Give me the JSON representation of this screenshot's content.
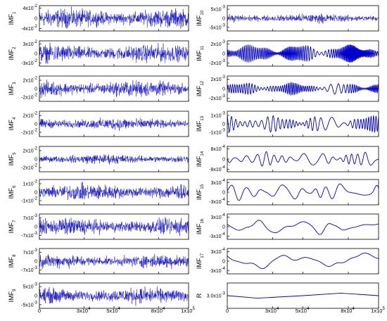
{
  "line_color": "#0000cc",
  "chart_data": {
    "type": "line",
    "grid": false,
    "x_axis": {
      "range": [
        0,
        100000
      ],
      "ticks": [
        0,
        30000,
        50000,
        80000,
        100000
      ],
      "tick_labels": [
        {
          "base": "0",
          "exp": ""
        },
        {
          "base": "3x10",
          "exp": "4"
        },
        {
          "base": "5x10",
          "exp": "4"
        },
        {
          "base": "8x10",
          "exp": "4"
        },
        {
          "base": "1x10",
          "exp": "5"
        }
      ]
    },
    "panels": [
      {
        "label": {
          "base": "IMF",
          "sub": "1"
        },
        "column": "left",
        "ylim": [
          -0.05,
          0.05
        ],
        "yticks": [
          {
            "v": 0.04,
            "base": "4x10",
            "exp": "-2"
          },
          {
            "v": 0,
            "base": "0",
            "exp": ""
          },
          {
            "v": -0.04,
            "base": "-4x10",
            "exp": "-2"
          }
        ],
        "signal": {
          "kind": "noise",
          "amplitude": 0.042,
          "cycles": 0
        }
      },
      {
        "label": {
          "base": "IMF",
          "sub": "2"
        },
        "column": "left",
        "ylim": [
          -0.04,
          0.04
        ],
        "yticks": [
          {
            "v": 0.03,
            "base": "3x10",
            "exp": "-2"
          },
          {
            "v": 0,
            "base": "0",
            "exp": ""
          },
          {
            "v": -0.03,
            "base": "-3x10",
            "exp": "-2"
          }
        ],
        "signal": {
          "kind": "noise",
          "amplitude": 0.032,
          "cycles": 0
        }
      },
      {
        "label": {
          "base": "IMF",
          "sub": "3"
        },
        "column": "left",
        "ylim": [
          -0.03,
          0.03
        ],
        "yticks": [
          {
            "v": 0.02,
            "base": "2x10",
            "exp": "-2"
          },
          {
            "v": 0,
            "base": "0",
            "exp": ""
          },
          {
            "v": -0.02,
            "base": "-2x10",
            "exp": "-2"
          }
        ],
        "signal": {
          "kind": "noise",
          "amplitude": 0.022,
          "cycles": 0
        }
      },
      {
        "label": {
          "base": "IMF",
          "sub": "4"
        },
        "column": "left",
        "ylim": [
          -0.03,
          0.03
        ],
        "yticks": [
          {
            "v": 0.02,
            "base": "2x10",
            "exp": "-2"
          },
          {
            "v": 0,
            "base": "0",
            "exp": ""
          },
          {
            "v": -0.02,
            "base": "-2x10",
            "exp": "-2"
          }
        ],
        "signal": {
          "kind": "noise",
          "amplitude": 0.016,
          "cycles": 0
        }
      },
      {
        "label": {
          "base": "IMF",
          "sub": "5"
        },
        "column": "left",
        "ylim": [
          -0.03,
          0.03
        ],
        "yticks": [
          {
            "v": 0.02,
            "base": "2x10",
            "exp": "-2"
          },
          {
            "v": 0,
            "base": "0",
            "exp": ""
          },
          {
            "v": -0.02,
            "base": "-2x10",
            "exp": "-2"
          }
        ],
        "signal": {
          "kind": "noise",
          "amplitude": 0.013,
          "cycles": 0
        }
      },
      {
        "label": {
          "base": "IMF",
          "sub": "6"
        },
        "column": "left",
        "ylim": [
          -0.015,
          0.015
        ],
        "yticks": [
          {
            "v": 0.01,
            "base": "1x10",
            "exp": "-2"
          },
          {
            "v": 0,
            "base": "0",
            "exp": ""
          },
          {
            "v": -0.01,
            "base": "-1x10",
            "exp": "-2"
          }
        ],
        "signal": {
          "kind": "noise",
          "amplitude": 0.011,
          "cycles": 0
        }
      },
      {
        "label": {
          "base": "IMF",
          "sub": "7"
        },
        "column": "left",
        "ylim": [
          -0.01,
          0.01
        ],
        "yticks": [
          {
            "v": 0.007,
            "base": "7x10",
            "exp": "-3"
          },
          {
            "v": 0,
            "base": "0",
            "exp": ""
          },
          {
            "v": -0.007,
            "base": "-7x10",
            "exp": "-3"
          }
        ],
        "signal": {
          "kind": "noise",
          "amplitude": 0.0075,
          "cycles": 0
        }
      },
      {
        "label": {
          "base": "IMF",
          "sub": "8"
        },
        "column": "left",
        "ylim": [
          -0.01,
          0.01
        ],
        "yticks": [
          {
            "v": 0.007,
            "base": "7x10",
            "exp": "-3"
          },
          {
            "v": 0,
            "base": "0",
            "exp": ""
          },
          {
            "v": -0.007,
            "base": "-7x10",
            "exp": "-3"
          }
        ],
        "signal": {
          "kind": "noise",
          "amplitude": 0.006,
          "cycles": 0
        }
      },
      {
        "label": {
          "base": "IMF",
          "sub": "9"
        },
        "column": "left",
        "ylim": [
          -0.007,
          0.007
        ],
        "yticks": [
          {
            "v": 0.005,
            "base": "5x10",
            "exp": "-3"
          },
          {
            "v": 0,
            "base": "0",
            "exp": ""
          },
          {
            "v": -0.005,
            "base": "-5x10",
            "exp": "-3"
          }
        ],
        "signal": {
          "kind": "noise",
          "amplitude": 0.005,
          "cycles": 0
        }
      },
      {
        "label": {
          "base": "IMF",
          "sub": "10"
        },
        "column": "right",
        "ylim": [
          -0.007,
          0.007
        ],
        "yticks": [
          {
            "v": 0.005,
            "base": "5x10",
            "exp": "-3"
          },
          {
            "v": 0,
            "base": "0",
            "exp": ""
          },
          {
            "v": -0.005,
            "base": "-5x10",
            "exp": "-3"
          }
        ],
        "signal": {
          "kind": "noise",
          "amplitude": 0.0028,
          "cycles": 0
        }
      },
      {
        "label": {
          "base": "IMF",
          "sub": "11"
        },
        "column": "right",
        "ylim": [
          -0.0027,
          0.0027
        ],
        "yticks": [
          {
            "v": 0.002,
            "base": "2x10",
            "exp": "-3"
          },
          {
            "v": 0,
            "base": "0",
            "exp": ""
          },
          {
            "v": -0.002,
            "base": "-2x10",
            "exp": "-3"
          }
        ],
        "signal": {
          "kind": "oscillation",
          "amplitude": 0.0019,
          "cycles": 95
        }
      },
      {
        "label": {
          "base": "IMF",
          "sub": "12"
        },
        "column": "right",
        "ylim": [
          -0.0027,
          0.0027
        ],
        "yticks": [
          {
            "v": 0.002,
            "base": "2x10",
            "exp": "-3"
          },
          {
            "v": 0,
            "base": "0",
            "exp": ""
          },
          {
            "v": -0.002,
            "base": "-2x10",
            "exp": "-3"
          }
        ],
        "signal": {
          "kind": "oscillation",
          "amplitude": 0.0013,
          "cycles": 62
        }
      },
      {
        "label": {
          "base": "IMF",
          "sub": "13"
        },
        "column": "right",
        "ylim": [
          -0.0015,
          0.0015
        ],
        "yticks": [
          {
            "v": 0.001,
            "base": "1x10",
            "exp": "-3"
          },
          {
            "v": 0,
            "base": "0",
            "exp": ""
          },
          {
            "v": -0.001,
            "base": "-1x10",
            "exp": "-3"
          }
        ],
        "signal": {
          "kind": "oscillation",
          "amplitude": 0.001,
          "cycles": 32
        }
      },
      {
        "label": {
          "base": "IMF",
          "sub": "14"
        },
        "column": "right",
        "ylim": [
          -0.001,
          0.001
        ],
        "yticks": [
          {
            "v": 0.0008,
            "base": "8x10",
            "exp": "-4"
          },
          {
            "v": 0,
            "base": "0",
            "exp": ""
          },
          {
            "v": -0.0008,
            "base": "-8x10",
            "exp": "-4"
          }
        ],
        "signal": {
          "kind": "oscillation",
          "amplitude": 0.0006,
          "cycles": 15
        }
      },
      {
        "label": {
          "base": "IMF",
          "sub": "15"
        },
        "column": "right",
        "ylim": [
          -0.0004,
          0.0004
        ],
        "yticks": [
          {
            "v": 0.0003,
            "base": "3x10",
            "exp": "-4"
          },
          {
            "v": 0,
            "base": "0",
            "exp": ""
          },
          {
            "v": -0.0003,
            "base": "-3x10",
            "exp": "-4"
          }
        ],
        "signal": {
          "kind": "oscillation",
          "amplitude": 0.00028,
          "cycles": 9
        }
      },
      {
        "label": {
          "base": "IMF",
          "sub": "16"
        },
        "column": "right",
        "ylim": [
          -0.0004,
          0.0004
        ],
        "yticks": [
          {
            "v": 0.0003,
            "base": "3x10",
            "exp": "-4"
          },
          {
            "v": 0,
            "base": "0",
            "exp": ""
          },
          {
            "v": -0.0003,
            "base": "-3x10",
            "exp": "-4"
          }
        ],
        "signal": {
          "kind": "oscillation",
          "amplitude": 0.00026,
          "cycles": 4
        }
      },
      {
        "label": {
          "base": "IMF",
          "sub": "17"
        },
        "column": "right",
        "ylim": [
          -0.0004,
          0.0004
        ],
        "yticks": [
          {
            "v": 0.0003,
            "base": "3x10",
            "exp": "-4"
          },
          {
            "v": 0,
            "base": "0",
            "exp": ""
          },
          {
            "v": -0.0003,
            "base": "-3x10",
            "exp": "-4"
          }
        ],
        "signal": {
          "kind": "oscillation",
          "amplitude": 0.00032,
          "cycles": 2
        }
      },
      {
        "label": {
          "base": "R",
          "sub": ""
        },
        "column": "right",
        "ylim": [
          0.0029,
          0.0031
        ],
        "yticks": [
          {
            "v": 0.003,
            "base": "3.0x10",
            "exp": "-3"
          }
        ],
        "signal": {
          "kind": "trend",
          "points": [
            [
              0,
              0.003
            ],
            [
              20000,
              0.00298
            ],
            [
              50000,
              0.003
            ],
            [
              75000,
              0.00302
            ],
            [
              100000,
              0.003
            ]
          ]
        }
      }
    ]
  }
}
